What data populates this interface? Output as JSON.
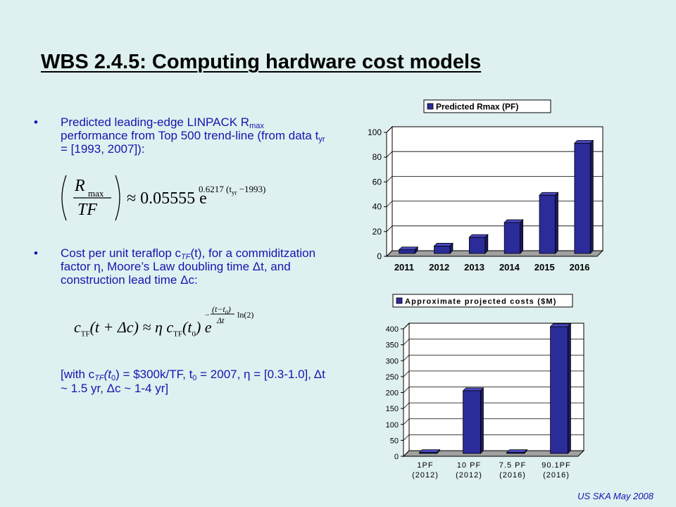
{
  "slide": {
    "title": "WBS 2.4.5: Computing hardware cost models",
    "footer": "US SKA May 2008"
  },
  "bullets": [
    {
      "marker": "•",
      "p1": "Predicted leading-edge LINPACK R",
      "p1_sub": "max",
      "p2": " performance from Top 500 trend-line (from data t",
      "p2_sub": "yr",
      "p3": " = [1993, 2007]):"
    },
    {
      "marker": "•",
      "p1": "Cost per unit teraflop c",
      "p1_sub": "TF",
      "p2": "(t), for a commiditzation factor η, Moore’s Law doubling time Δt, and construction lead time Δc:"
    }
  ],
  "formula1": {
    "R": "R",
    "max": "max",
    "TF": "TF",
    "approx": "≈ 0.05555 e",
    "exp_a": "0.6217 (t",
    "exp_yr": "yr",
    "exp_b": " −1993)"
  },
  "formula2": {
    "lhs": "c",
    "lhs_sub": "TF",
    "lhs_arg": "(t + Δc) ≈ η c",
    "rhs_sub": "TF",
    "rhs_arg": "(t",
    "rhs_0": "0",
    "rhs_close": ") e",
    "exp_num": "(t−t",
    "exp_num0": "0",
    "exp_num_close": ")",
    "exp_den": "Δt",
    "exp_tail": "ln(2)",
    "exp_minus": "−"
  },
  "note": {
    "a": "[with c",
    "a_sub": "TF",
    "b": "(t",
    "b_sub": "0",
    "c": ") = $300k/TF, t",
    "c_sub": "0",
    "d": " = 2007, η = [0.3-1.0], Δt ~ 1.5 yr, Δc ~ 1-4 yr]"
  },
  "chart_data": [
    {
      "type": "bar",
      "title": "",
      "legend": "Predicted Rmax (PF)",
      "legend_position": "top",
      "categories": [
        "2011",
        "2012",
        "2013",
        "2014",
        "2015",
        "2016"
      ],
      "series": [
        {
          "name": "Predicted Rmax (PF)",
          "values": [
            3,
            6,
            13,
            25,
            47,
            89
          ]
        }
      ],
      "ylim": [
        0,
        100
      ],
      "yticks": [
        0,
        20,
        40,
        60,
        80,
        100
      ],
      "grid": true,
      "colors": {
        "bar": "#2b2b9a",
        "floor": "#a0a0a0"
      }
    },
    {
      "type": "bar",
      "title": "",
      "legend": "Approximate projected costs ($M)",
      "legend_position": "top",
      "categories": [
        [
          "1PF",
          "(2012)"
        ],
        [
          "10 PF",
          "(2012)"
        ],
        [
          "7.5 PF",
          "(2016)"
        ],
        [
          "90.1PF",
          "(2016)"
        ]
      ],
      "series": [
        {
          "name": "Approximate projected costs ($M)",
          "values": [
            3,
            197,
            3,
            398
          ]
        }
      ],
      "ylim": [
        0,
        400
      ],
      "yticks": [
        0,
        50,
        100,
        150,
        200,
        250,
        300,
        350,
        400
      ],
      "grid": true,
      "colors": {
        "bar": "#2b2b9a",
        "floor": "#a0a0a0"
      }
    }
  ]
}
